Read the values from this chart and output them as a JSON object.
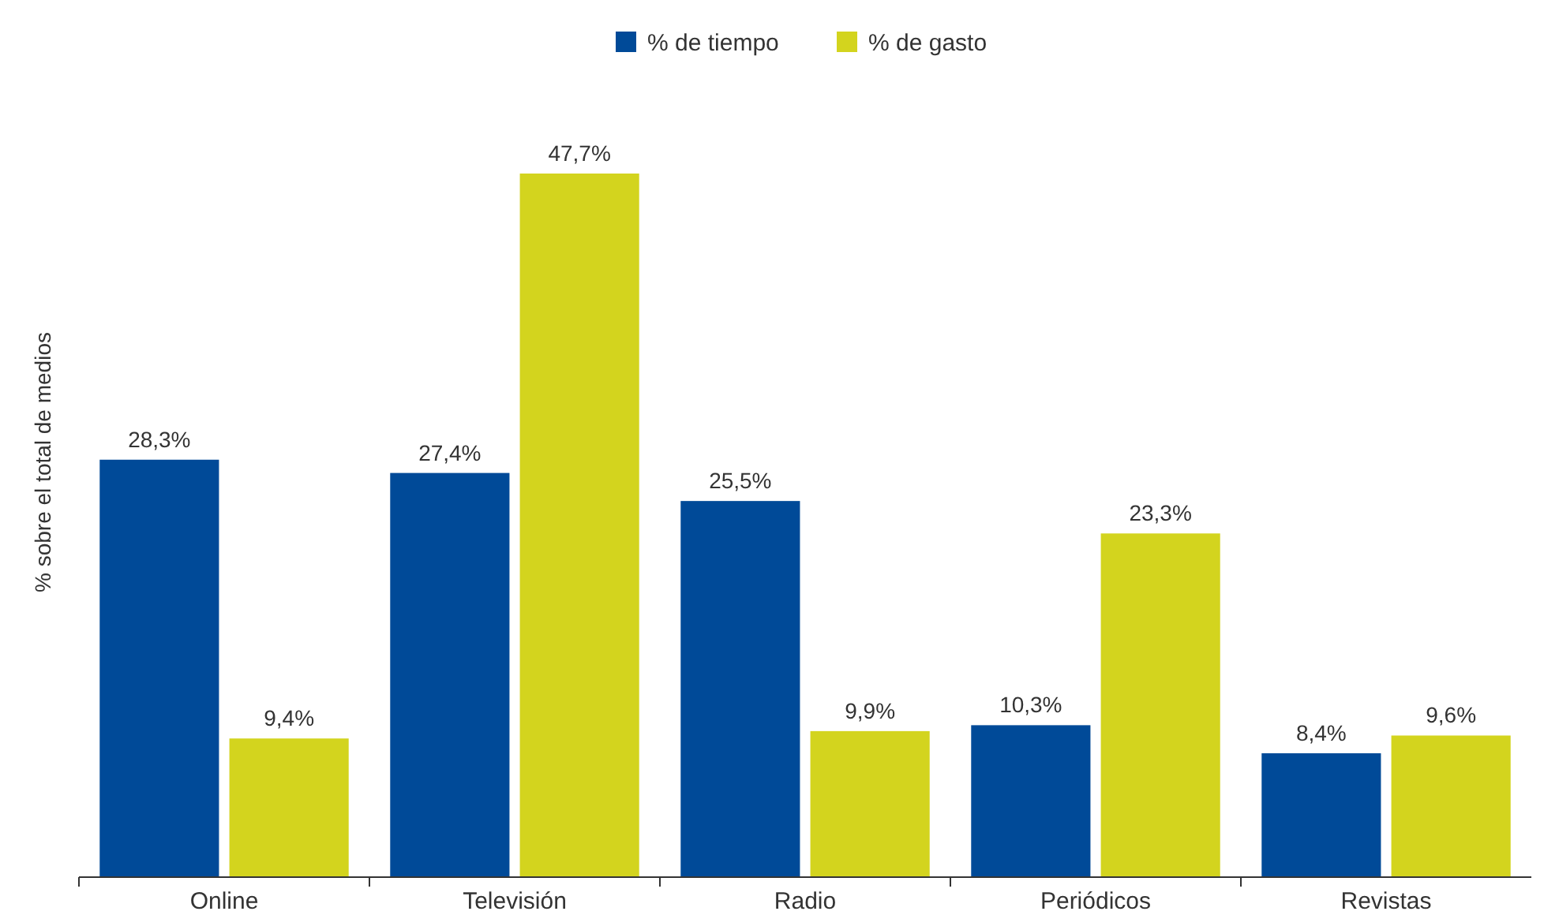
{
  "chart_data": {
    "type": "bar",
    "ylabel": "% sobre el total de medios",
    "categories": [
      "Online",
      "Televisión",
      "Radio",
      "Periódicos",
      "Revistas"
    ],
    "series": [
      {
        "name": "% de tiempo",
        "color": "#004a98",
        "values": [
          28.3,
          27.4,
          25.5,
          10.3,
          8.4
        ],
        "value_labels": [
          "28,3%",
          "27,4%",
          "25,5%",
          "10,3%",
          "8,4%"
        ]
      },
      {
        "name": "% de gasto",
        "color": "#d3d41e",
        "values": [
          9.4,
          47.7,
          9.9,
          23.3,
          9.6
        ],
        "value_labels": [
          "9,4%",
          "47,7%",
          "9,9%",
          "23,3%",
          "9,6%"
        ]
      }
    ],
    "legend": "top",
    "grid": false
  }
}
